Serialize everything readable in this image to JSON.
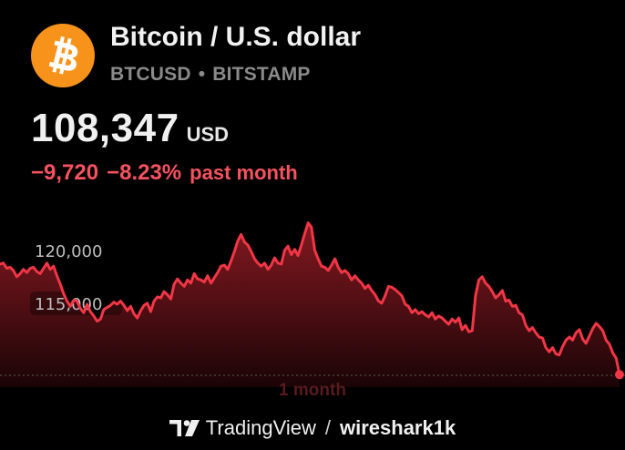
{
  "asset": {
    "name": "Bitcoin / U.S. dollar",
    "symbol": "BTCUSD",
    "separator": "•",
    "exchange": "BITSTAMP",
    "logo_icon": "bitcoin-logo-icon",
    "logo_color": "#f7931a"
  },
  "quote": {
    "price": "108,347",
    "currency": "USD",
    "change_abs": "−9,720",
    "change_pct": "−8.23%",
    "change_period": "past month",
    "change_color": "#f7525f"
  },
  "period_label": "1 month",
  "footer": {
    "brand": "TradingView",
    "brand_icon": "tradingview-logo-icon",
    "slash": "/",
    "user": "wireshark1k"
  },
  "chart_data": {
    "type": "area",
    "y_ticks": [
      "120,000",
      "115,000"
    ],
    "y_tick_values": [
      120000,
      115000
    ],
    "line_color": "#f23645",
    "series": [
      {
        "values": [
          118800,
          118900,
          118400,
          118500,
          118200,
          117600,
          117900,
          118300,
          118000,
          118400,
          118500,
          118100,
          117900,
          118400,
          118900,
          118300,
          118600,
          117700,
          116900,
          116000,
          115300,
          114800,
          115400,
          115300,
          114600,
          114200,
          115000,
          114300,
          113900,
          113400,
          113600,
          114500,
          114700,
          114900,
          115200,
          115000,
          115300,
          114900,
          114400,
          114800,
          114100,
          113700,
          114400,
          114900,
          115100,
          114300,
          115300,
          115700,
          115600,
          116200,
          115900,
          115500,
          116900,
          117400,
          117000,
          116700,
          117300,
          117000,
          117900,
          117400,
          117300,
          117100,
          117700,
          117000,
          117500,
          118000,
          118600,
          118700,
          118300,
          119100,
          120000,
          121000,
          121600,
          120900,
          120600,
          120000,
          119300,
          118900,
          118600,
          118900,
          118300,
          118700,
          119400,
          118900,
          118800,
          120100,
          120500,
          119700,
          120200,
          119600,
          120600,
          121700,
          122700,
          122300,
          120100,
          119300,
          118600,
          118500,
          118200,
          118700,
          119300,
          118500,
          118000,
          118200,
          117900,
          117300,
          117700,
          117300,
          117000,
          116500,
          116800,
          116300,
          115900,
          115300,
          115100,
          115800,
          116700,
          116600,
          116400,
          116100,
          115800,
          115000,
          114800,
          114200,
          114500,
          114100,
          114300,
          114000,
          113800,
          114200,
          113600,
          113900,
          113700,
          113400,
          113100,
          113600,
          113300,
          113700,
          112600,
          113000,
          112400,
          112500,
          115800,
          117300,
          117600,
          117000,
          116700,
          116200,
          115600,
          115900,
          116300,
          115300,
          115400,
          114800,
          114900,
          114200,
          114000,
          113000,
          112500,
          112800,
          112300,
          111900,
          111800,
          110900,
          110500,
          110900,
          110300,
          110200,
          111000,
          111600,
          111900,
          111600,
          112300,
          112600,
          111700,
          111300,
          112000,
          112700,
          113200,
          112900,
          112500,
          111600,
          111200,
          110400,
          109900,
          108347
        ]
      }
    ]
  }
}
